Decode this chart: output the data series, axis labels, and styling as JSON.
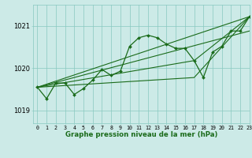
{
  "title": "Graphe pression niveau de la mer (hPa)",
  "xlim": [
    -0.5,
    23
  ],
  "ylim": [
    1018.7,
    1021.5
  ],
  "yticks": [
    1019,
    1020,
    1021
  ],
  "xticks": [
    0,
    1,
    2,
    3,
    4,
    5,
    6,
    7,
    8,
    9,
    10,
    11,
    12,
    13,
    14,
    15,
    16,
    17,
    18,
    19,
    20,
    21,
    22,
    23
  ],
  "bg_color": "#cceae7",
  "grid_color": "#88c8c0",
  "line_color": "#1a6b1a",
  "main_line": [
    1019.55,
    1019.28,
    1019.65,
    1019.65,
    1019.38,
    1019.52,
    1019.72,
    1019.97,
    1019.83,
    1019.93,
    1020.52,
    1020.72,
    1020.78,
    1020.72,
    1020.57,
    1020.47,
    1020.47,
    1020.18,
    1019.78,
    1020.38,
    1020.52,
    1020.88,
    1020.88,
    1021.22
  ],
  "trend1_x": [
    0,
    23
  ],
  "trend1_y": [
    1019.55,
    1021.22
  ],
  "trend2_x": [
    0,
    23
  ],
  "trend2_y": [
    1019.55,
    1020.88
  ],
  "trend3_x": [
    0,
    17,
    23
  ],
  "trend3_y": [
    1019.55,
    1020.18,
    1021.22
  ],
  "trend4_x": [
    0,
    17,
    23
  ],
  "trend4_y": [
    1019.55,
    1019.78,
    1021.22
  ]
}
